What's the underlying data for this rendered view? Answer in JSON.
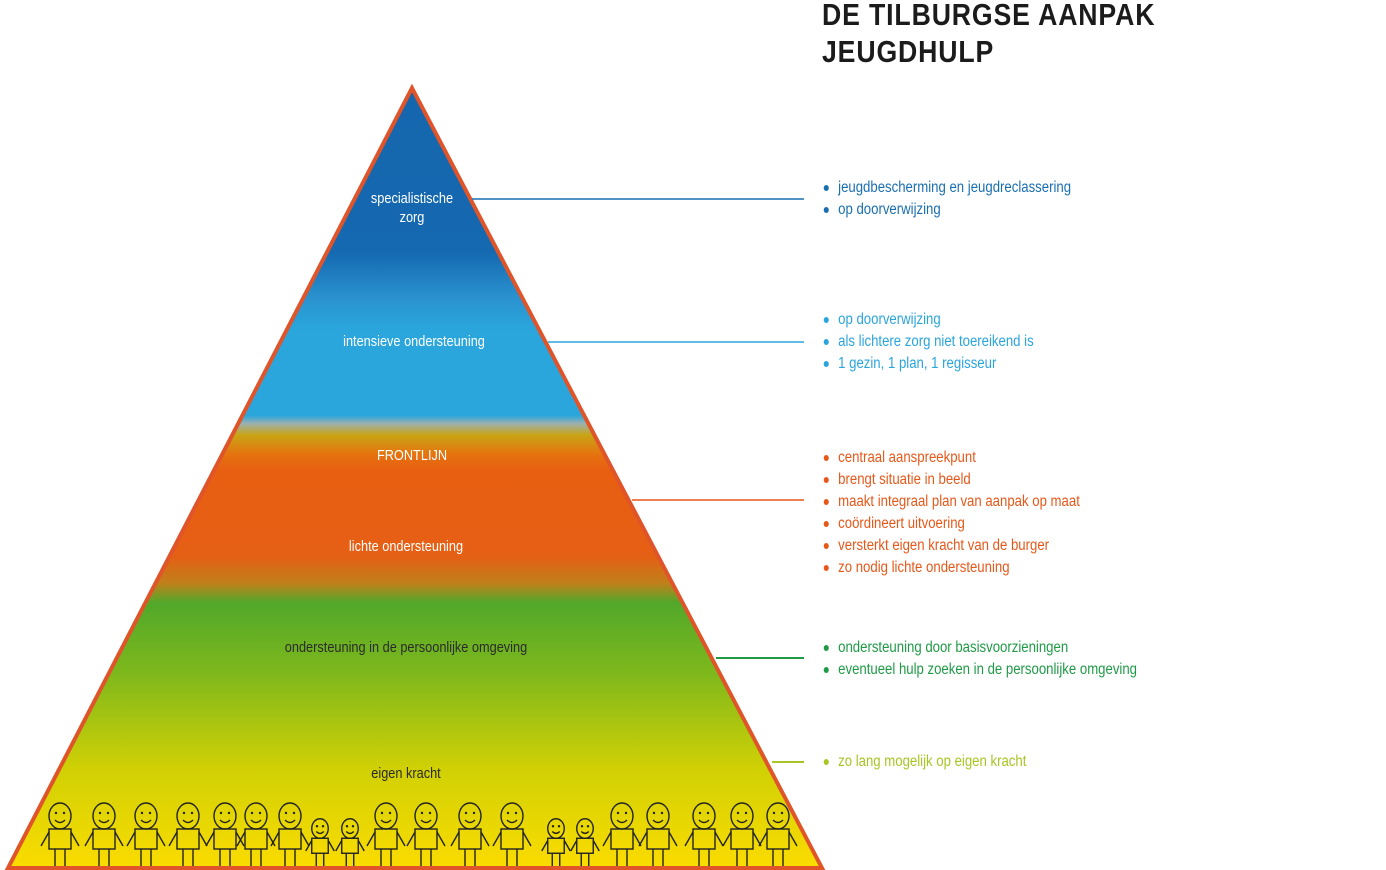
{
  "title": {
    "line1": "DE TILBURGSE AANPAK",
    "line2": "JEUGDHULP"
  },
  "colors": {
    "outline": "#e0542a",
    "dark_blue": "#1a6fb0",
    "light_blue": "#2aa5dc",
    "orange": "#e6581a",
    "green": "#1f9a46",
    "yellow_green": "#a7c524"
  },
  "pyramid": {
    "levels": [
      {
        "label": "specialistische",
        "label2": "zorg"
      },
      {
        "label": "intensieve ondersteuning"
      },
      {
        "label": "FRONTLIJN"
      },
      {
        "label": "lichte ondersteuning"
      },
      {
        "label": "ondersteuning in de persoonlijke omgeving"
      },
      {
        "label": "eigen kracht"
      }
    ],
    "illustration": "row of hand-drawn people holding hands"
  },
  "lists": {
    "specialist": [
      "jeugdbescherming en jeugdreclassering",
      "op doorverwijzing"
    ],
    "intensive": [
      "op doorverwijzing",
      "als lichtere zorg niet toereikend is",
      "1 gezin, 1 plan, 1 regisseur"
    ],
    "frontline": [
      "centraal aanspreekpunt",
      "brengt situatie in beeld",
      "maakt integraal plan van aanpak op maat",
      "coördineert uitvoering",
      "versterkt eigen kracht van de burger",
      "zo nodig lichte ondersteuning"
    ],
    "personal": [
      "ondersteuning door basisvoorzieningen",
      "eventueel hulp zoeken in de persoonlijke omgeving"
    ],
    "own": [
      "zo lang mogelijk op eigen kracht"
    ]
  }
}
